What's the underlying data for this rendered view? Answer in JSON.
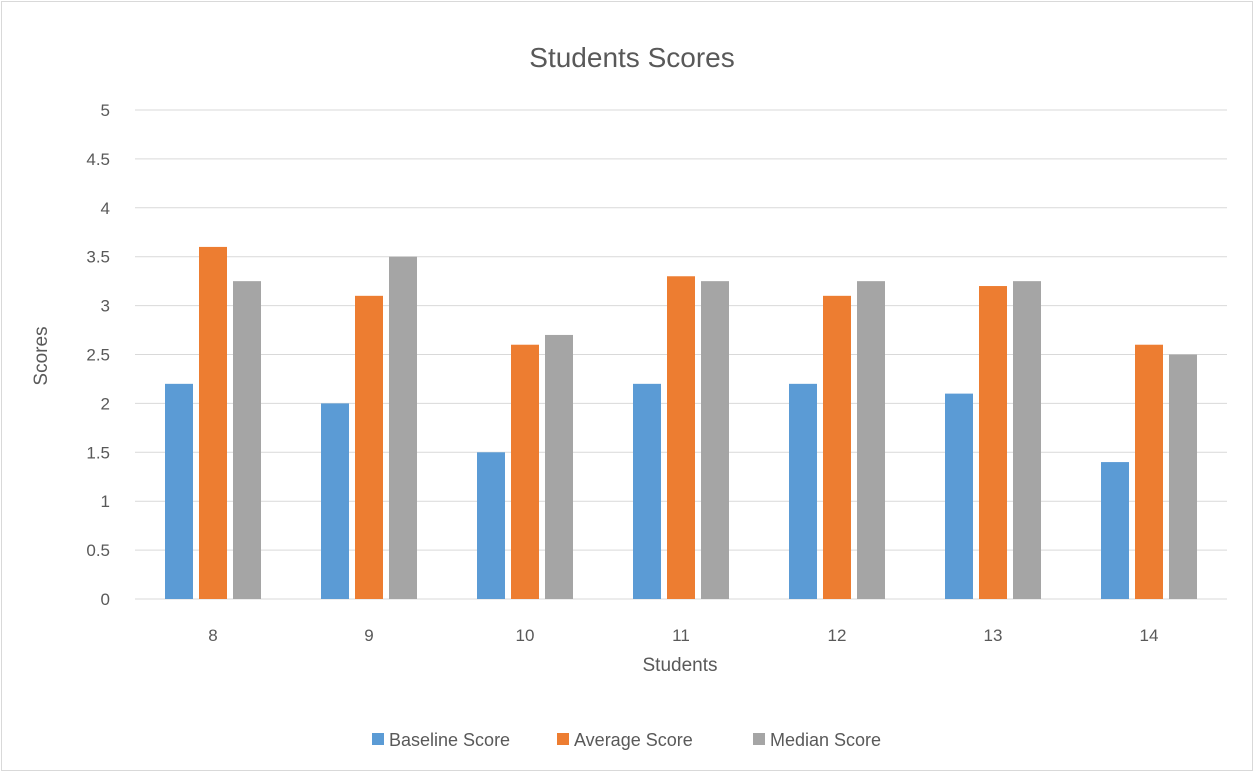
{
  "chart_data": {
    "type": "bar",
    "title": "Students Scores",
    "xlabel": "Students",
    "ylabel": "Scores",
    "categories": [
      "8",
      "9",
      "10",
      "11",
      "12",
      "13",
      "14"
    ],
    "series": [
      {
        "name": "Baseline Score",
        "color": "#5b9bd5",
        "values": [
          2.2,
          2.0,
          1.5,
          2.2,
          2.2,
          2.1,
          1.4
        ]
      },
      {
        "name": "Average Score",
        "color": "#ed7d31",
        "values": [
          3.6,
          3.1,
          2.6,
          3.3,
          3.1,
          3.2,
          2.6
        ]
      },
      {
        "name": "Median Score",
        "color": "#a5a5a5",
        "values": [
          3.25,
          3.5,
          2.7,
          3.25,
          3.25,
          3.25,
          2.5
        ]
      }
    ],
    "ylim": [
      0,
      5
    ],
    "yticks": [
      "0",
      "0.5",
      "1",
      "1.5",
      "2",
      "2.5",
      "3",
      "3.5",
      "4",
      "4.5",
      "5"
    ],
    "grid": true,
    "legend_position": "bottom"
  }
}
